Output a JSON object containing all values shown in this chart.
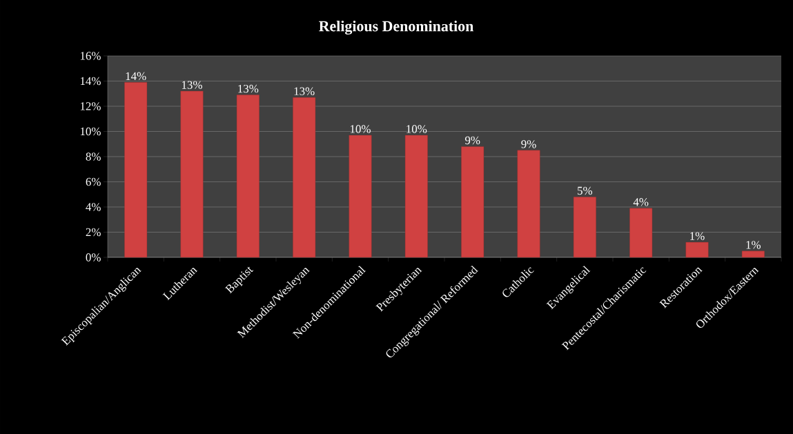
{
  "chart_data": {
    "type": "bar",
    "title": "Religious Denomination",
    "categories": [
      "Episcopalian/Anglican",
      "Lutheran",
      "Baptist",
      "Methodist/Wesleyan",
      "Non-denominational",
      "Presbyterian",
      "Congregational/ Reformed",
      "Catholic",
      "Evangelical",
      "Pentecostal/Charismatic",
      "Restoration",
      "Orthodox/Eastern"
    ],
    "values": [
      13.9,
      13.2,
      12.9,
      12.7,
      9.7,
      9.7,
      8.8,
      8.5,
      4.8,
      3.9,
      1.2,
      0.5
    ],
    "value_labels": [
      "14%",
      "13%",
      "13%",
      "13%",
      "10%",
      "10%",
      "9%",
      "9%",
      "5%",
      "4%",
      "1%",
      "1%"
    ],
    "color": "#d04141",
    "ylim": [
      0,
      16
    ],
    "yticks": [
      {
        "value": 0,
        "label": "0%"
      },
      {
        "value": 2,
        "label": "2%"
      },
      {
        "value": 4,
        "label": "4%"
      },
      {
        "value": 6,
        "label": "6%"
      },
      {
        "value": 8,
        "label": "8%"
      },
      {
        "value": 10,
        "label": "10%"
      },
      {
        "value": 12,
        "label": "12%"
      },
      {
        "value": 14,
        "label": "14%"
      },
      {
        "value": 16,
        "label": "16%"
      }
    ],
    "grid": "y"
  }
}
